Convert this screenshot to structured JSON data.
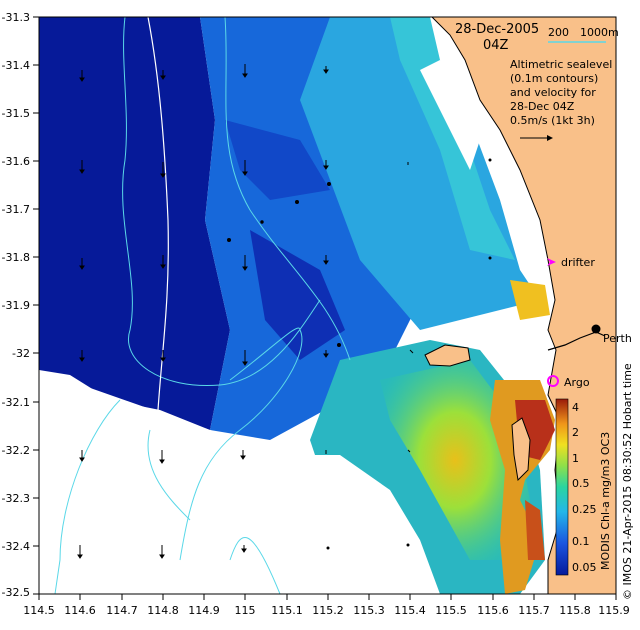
{
  "header": {
    "date": "28-Dec-2005",
    "time": "04Z",
    "scale_label_a": "200",
    "scale_label_b": "1000m"
  },
  "legend": {
    "line1": "Altimetric sealevel",
    "line2": "(0.1m contours)",
    "line3": "and velocity for",
    "line4": "28-Dec 04Z",
    "line5": "0.5m/s (1kt 3h)"
  },
  "places": {
    "drifter": "drifter",
    "perth": "Perth",
    "argo": "Argo"
  },
  "colorbar": {
    "title": "MODIS Chl-a mg/m3 OC3",
    "ticks": [
      "4",
      "2",
      "1",
      "0.5",
      "0.25",
      "0.1",
      "0.05"
    ]
  },
  "credit": "© IMOS 21-Apr-2015 08:30:52 Hobart time",
  "axes": {
    "x_ticks": [
      "114.5",
      "114.6",
      "114.7",
      "114.8",
      "114.9",
      "115",
      "115.1",
      "115.2",
      "115.3",
      "115.4",
      "115.5",
      "115.6",
      "115.7",
      "115.8",
      "115.9"
    ],
    "y_ticks": [
      "-31.3",
      "-31.4",
      "-31.5",
      "-31.6",
      "-31.7",
      "-31.8",
      "-31.9",
      "-32",
      "-32.1",
      "-32.2",
      "-32.3",
      "-32.4",
      "-32.5"
    ],
    "x_range": [
      114.5,
      115.9
    ],
    "y_range": [
      -32.5,
      -31.3
    ]
  },
  "colors": {
    "land": "#f9c089",
    "deep_ocean": "#051a99",
    "mid_ocean": "#1a6fe0",
    "shelf": "#2fc0d8",
    "high_chl": "#d9851c",
    "contour": "#5ad8e8",
    "marker": "#ff00ff"
  }
}
